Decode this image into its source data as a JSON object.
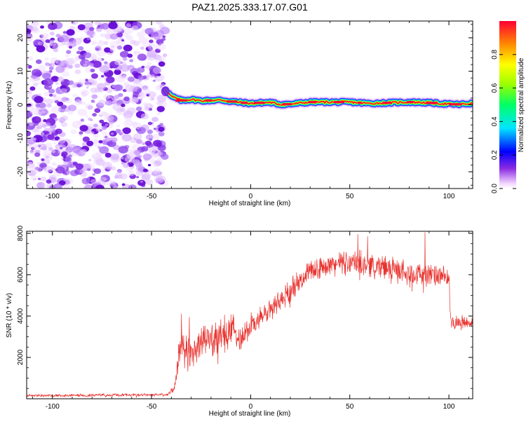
{
  "chart_data": [
    {
      "type": "heatmap",
      "title": "PAZ1.2025.333.17.07.G01",
      "xlabel": "Height of straight line (km)",
      "ylabel": "Frequency (Hz)",
      "xlim": [
        -113,
        112
      ],
      "ylim": [
        -25,
        25
      ],
      "xticks": [
        -100,
        -50,
        0,
        50,
        100
      ],
      "xtick_labels": [
        "-100",
        "-50",
        "0",
        "50",
        "100"
      ],
      "yticks": [
        -20,
        -10,
        0,
        10,
        20
      ],
      "ytick_labels": [
        "-20",
        "-10",
        "0",
        "10",
        "20"
      ],
      "noise_region_km": [
        -113,
        -43
      ],
      "transition_km": -43,
      "signal_track": {
        "x": [
          -43,
          -40,
          -35,
          -30,
          -25,
          -20,
          -15,
          -10,
          -5,
          0,
          5,
          10,
          15,
          20,
          30,
          40,
          50,
          60,
          70,
          80,
          90,
          100,
          105,
          112
        ],
        "y": [
          4.5,
          2.5,
          1.3,
          1.6,
          1.2,
          1.3,
          1.4,
          1.0,
          0.7,
          0.4,
          0.6,
          0.7,
          0.1,
          0.2,
          0.8,
          0.8,
          0.8,
          0.4,
          0.6,
          0.8,
          0.6,
          0.2,
          0.1,
          0.4
        ]
      },
      "colorbar": {
        "label": "Normalized spectral amplitude",
        "range": [
          0,
          1
        ],
        "ticks": [
          0.0,
          0.2,
          0.4,
          0.6,
          0.8
        ],
        "tick_labels": [
          "0.0",
          "0.2",
          "0.4",
          "0.6",
          "0.8"
        ]
      }
    },
    {
      "type": "line",
      "xlabel": "Height of straight line (km)",
      "ylabel": "SNR (10 * v/v)",
      "xlim": [
        -113,
        112
      ],
      "ylim": [
        0,
        8100
      ],
      "xticks": [
        -100,
        -50,
        0,
        50,
        100
      ],
      "xtick_labels": [
        "-100",
        "-50",
        "0",
        "50",
        "100"
      ],
      "yticks": [
        2000,
        4000,
        6000,
        8000
      ],
      "ytick_labels": [
        "2000",
        "4000",
        "6000",
        "8000"
      ],
      "color": "#e8322e",
      "envelope": {
        "x": [
          -113,
          -42,
          -38,
          -36,
          -33,
          -30,
          -25,
          -20,
          -15,
          -10,
          -5,
          0,
          5,
          10,
          20,
          25,
          30,
          40,
          50,
          60,
          70,
          80,
          90,
          100,
          101,
          105,
          112
        ],
        "mean": [
          150,
          200,
          600,
          2600,
          2400,
          2200,
          2800,
          2900,
          3100,
          3300,
          3000,
          3500,
          3900,
          4300,
          5200,
          5800,
          6200,
          6500,
          6600,
          6500,
          6300,
          6100,
          6000,
          5800,
          3700,
          3700,
          3700
        ],
        "amplitude": [
          80,
          80,
          400,
          900,
          1200,
          900,
          1000,
          900,
          1100,
          1000,
          800,
          700,
          600,
          650,
          650,
          600,
          550,
          600,
          700,
          700,
          700,
          650,
          650,
          600,
          400,
          400,
          400
        ]
      },
      "peaks": [
        {
          "x": 88,
          "y": 8050
        },
        {
          "x": 54,
          "y": 7950
        },
        {
          "x": 59,
          "y": 7850
        },
        {
          "x": -35,
          "y": 4100
        },
        {
          "x": -31,
          "y": 3950
        }
      ]
    }
  ]
}
